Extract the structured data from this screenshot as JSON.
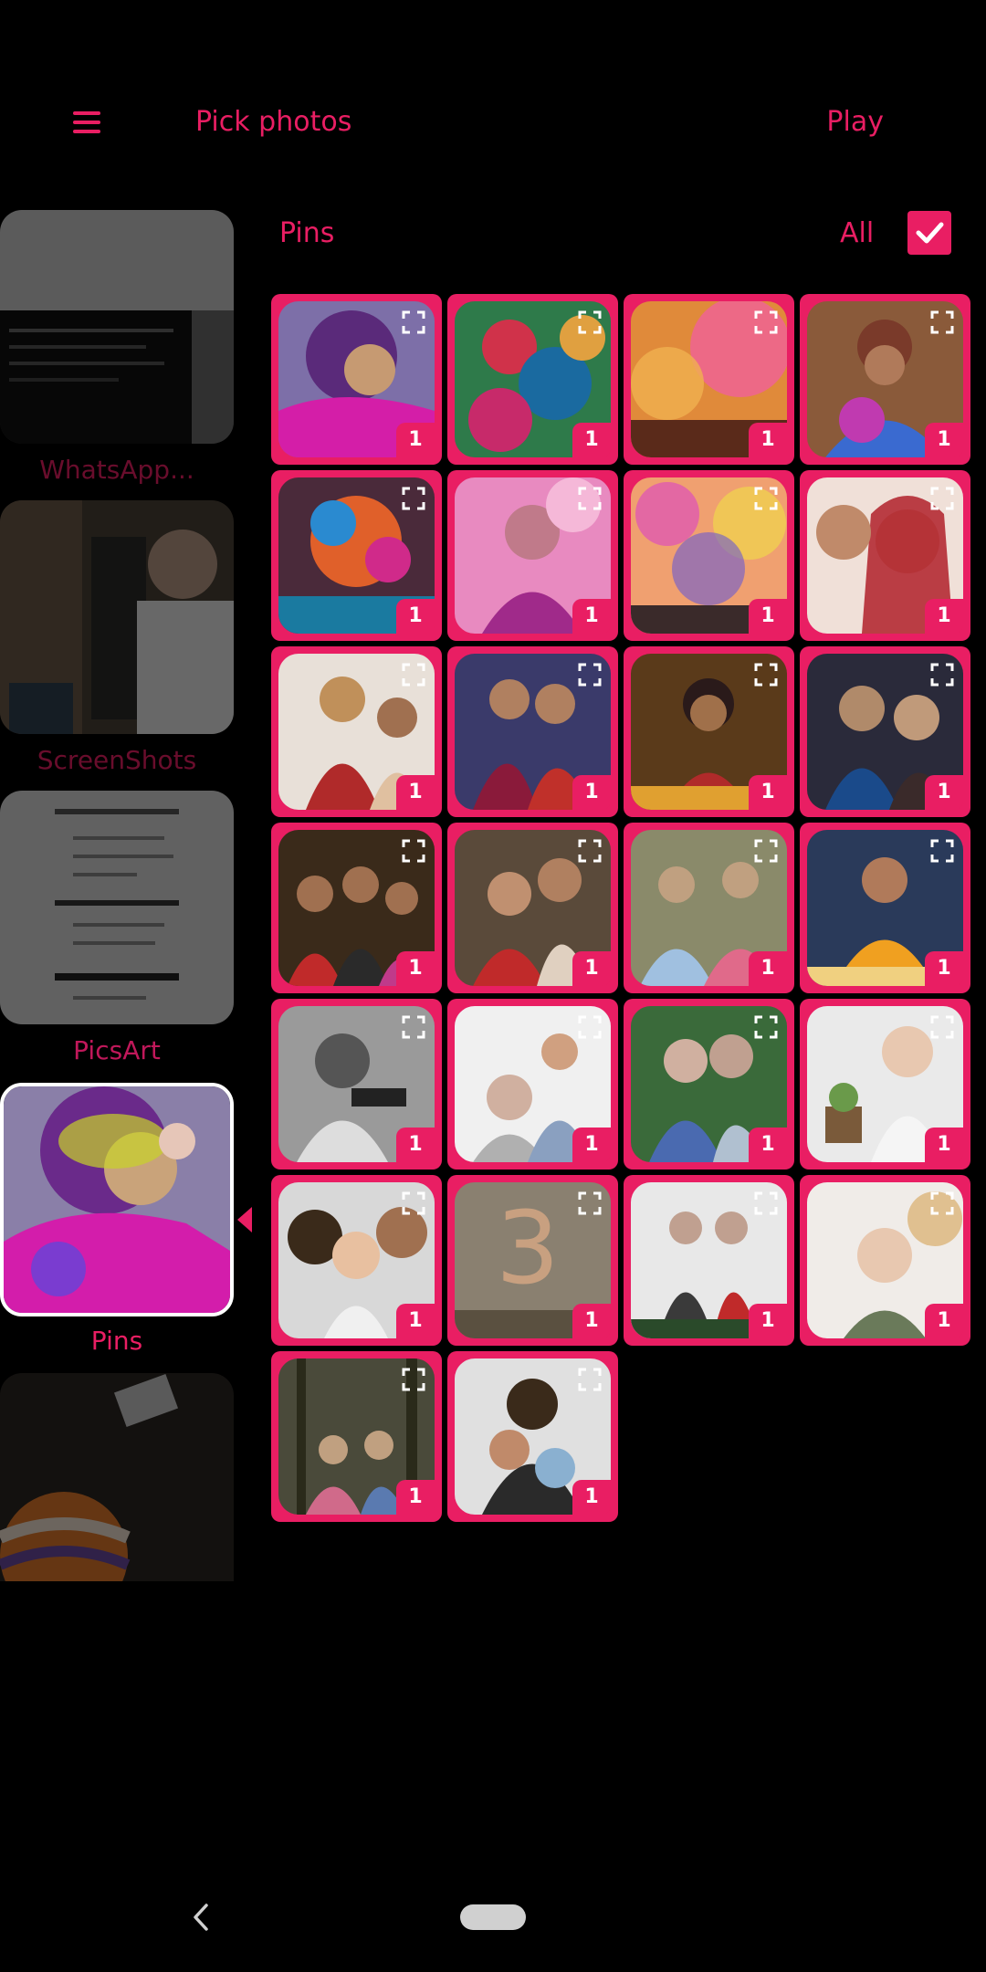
{
  "app": {
    "title": "Pick photos",
    "play_label": "Play",
    "menu_icon": "hamburger-menu-icon"
  },
  "albums": [
    {
      "label": "WhatsApp...",
      "selected": false
    },
    {
      "label": "ScreenShots",
      "selected": false
    },
    {
      "label": "PicsArt",
      "selected": false
    },
    {
      "label": "Pins",
      "selected": true
    },
    {
      "label": "",
      "selected": false
    }
  ],
  "section": {
    "title": "Pins",
    "all_label": "All",
    "all_checked": true
  },
  "photos": [
    {
      "count": "1"
    },
    {
      "count": "1"
    },
    {
      "count": "1"
    },
    {
      "count": "1"
    },
    {
      "count": "1"
    },
    {
      "count": "1"
    },
    {
      "count": "1"
    },
    {
      "count": "1"
    },
    {
      "count": "1"
    },
    {
      "count": "1"
    },
    {
      "count": "1"
    },
    {
      "count": "1"
    },
    {
      "count": "1"
    },
    {
      "count": "1"
    },
    {
      "count": "1"
    },
    {
      "count": "1"
    },
    {
      "count": "1"
    },
    {
      "count": "1"
    },
    {
      "count": "1"
    },
    {
      "count": "1"
    },
    {
      "count": "1"
    },
    {
      "count": "1"
    },
    {
      "count": "1"
    },
    {
      "count": "1"
    },
    {
      "count": "1"
    },
    {
      "count": "1"
    }
  ],
  "colors": {
    "accent": "#e91e63",
    "background": "#000000"
  }
}
